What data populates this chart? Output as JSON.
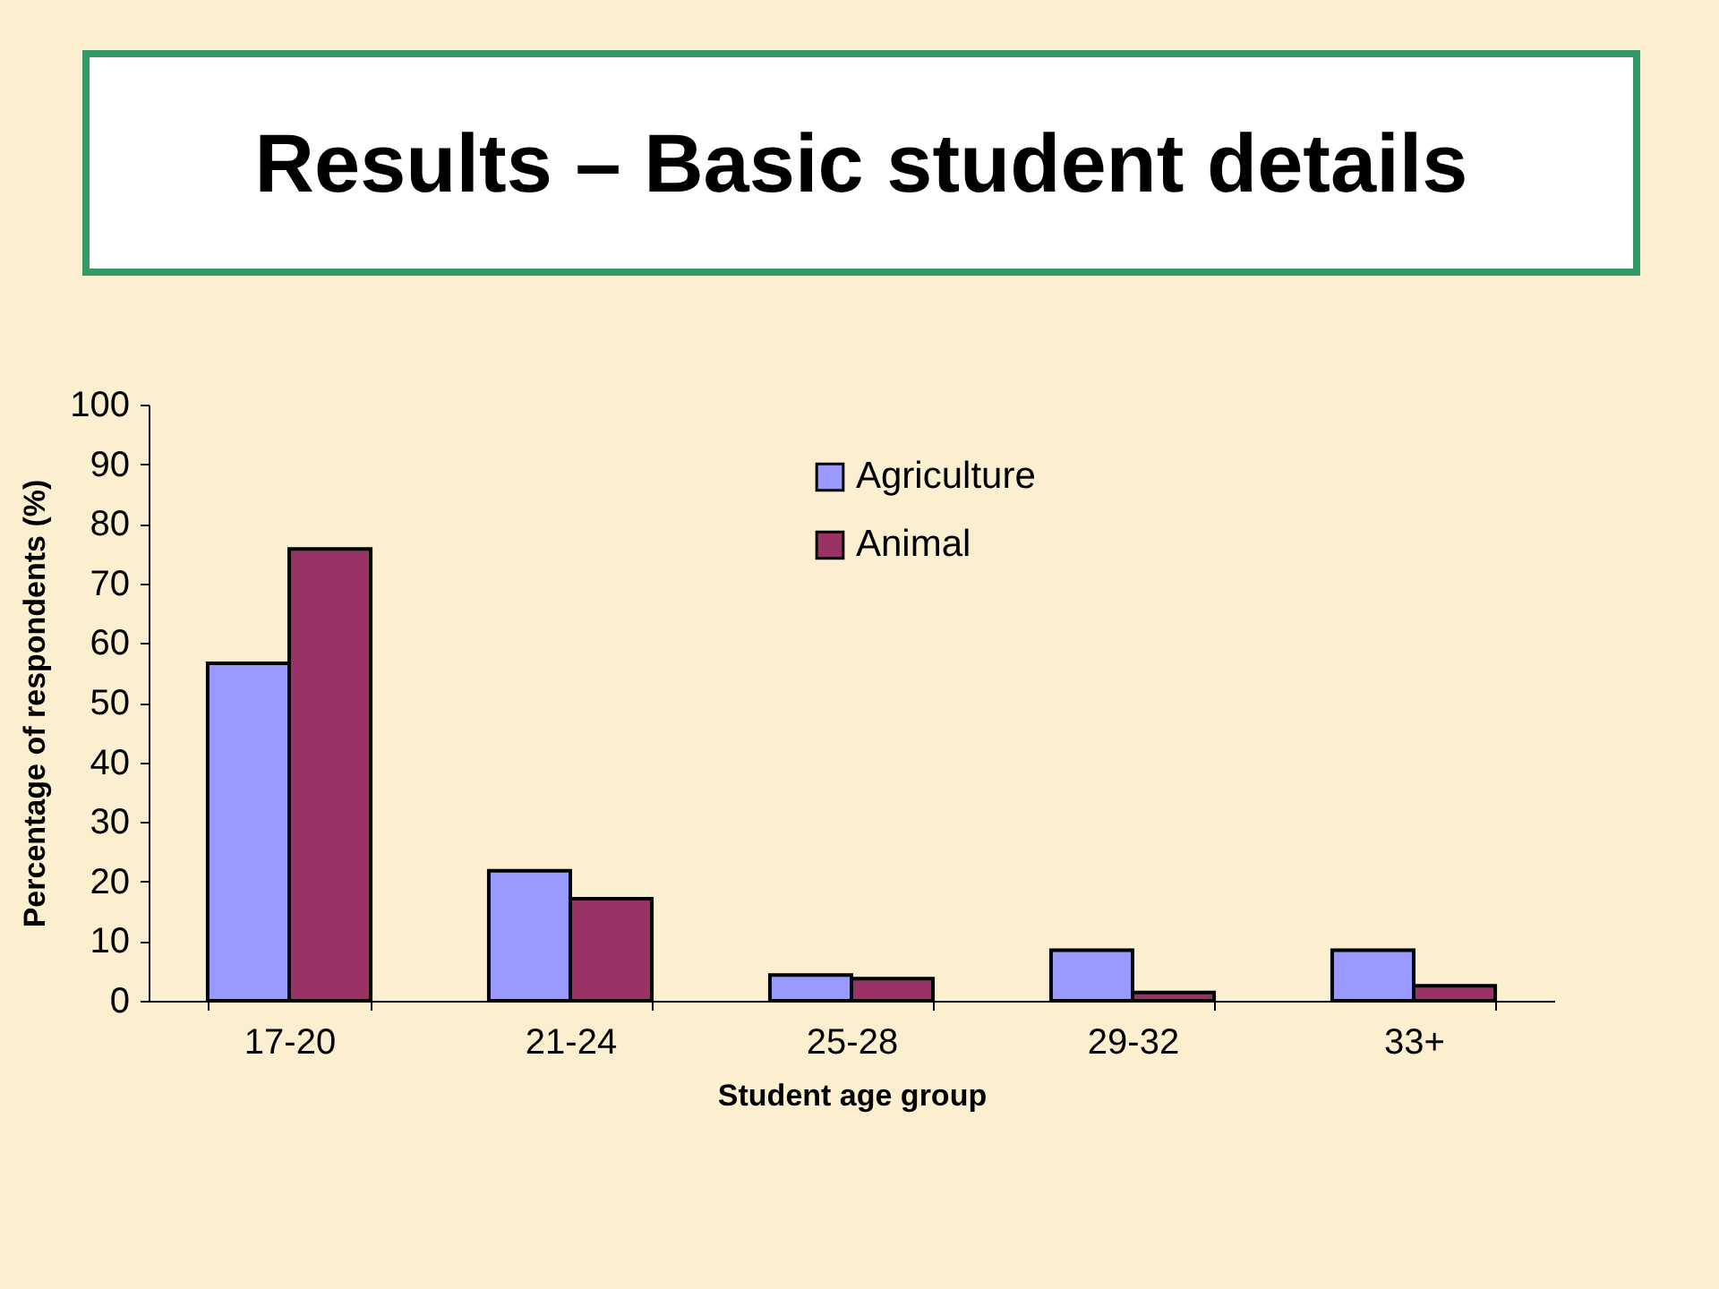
{
  "chart_data": {
    "type": "bar",
    "title": "Results – Basic student details",
    "xlabel": "Student age group",
    "ylabel": "Percentage of respondents (%)",
    "categories": [
      "17-20",
      "21-24",
      "25-28",
      "29-32",
      "33+"
    ],
    "series": [
      {
        "name": "Agriculture",
        "color": "#9999ff",
        "values": [
          56.6,
          21.8,
          4.3,
          8.5,
          8.5
        ]
      },
      {
        "name": "Animal",
        "color": "#993366",
        "values": [
          75.8,
          17.1,
          3.7,
          1.4,
          2.5
        ]
      }
    ],
    "ylim": [
      0,
      100
    ],
    "yticks": [
      0,
      10,
      20,
      30,
      40,
      50,
      60,
      70,
      80,
      90,
      100
    ],
    "grid": false,
    "legend": "top right"
  }
}
